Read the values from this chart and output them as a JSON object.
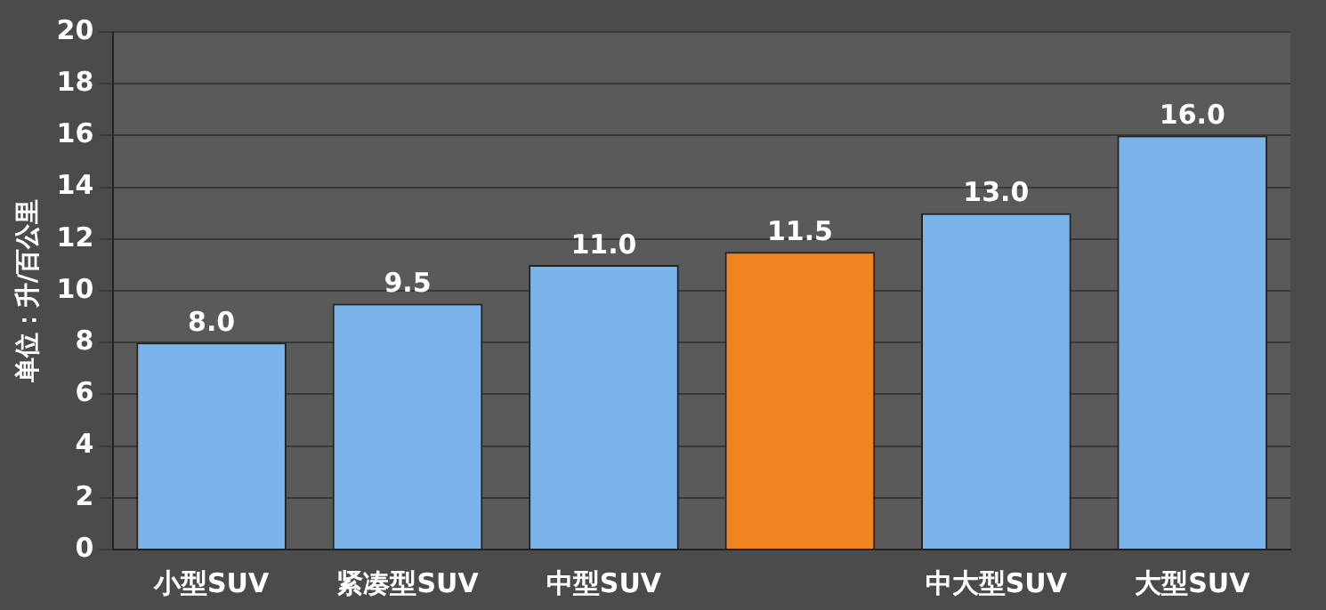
{
  "chart_data": {
    "type": "bar",
    "ylabel": "单位：升/百公里",
    "categories": [
      "小型SUV",
      "紧凑型SUV",
      "中型SUV",
      null,
      "中大型SUV",
      "大型SUV"
    ],
    "values": [
      8.0,
      9.5,
      11.0,
      11.5,
      13.0,
      16.0
    ],
    "colors": [
      "#7ab4ea",
      "#7ab4ea",
      "#7ab4ea",
      "#f08420",
      "#7ab4ea",
      "#7ab4ea"
    ],
    "ylim": [
      0,
      20
    ],
    "yticks": [
      0,
      2,
      4,
      6,
      8,
      10,
      12,
      14,
      16,
      18,
      20
    ],
    "value_labels": [
      "8.0",
      "9.5",
      "11.0",
      "11.5",
      "13.0",
      "16.0"
    ],
    "grid": "y"
  }
}
